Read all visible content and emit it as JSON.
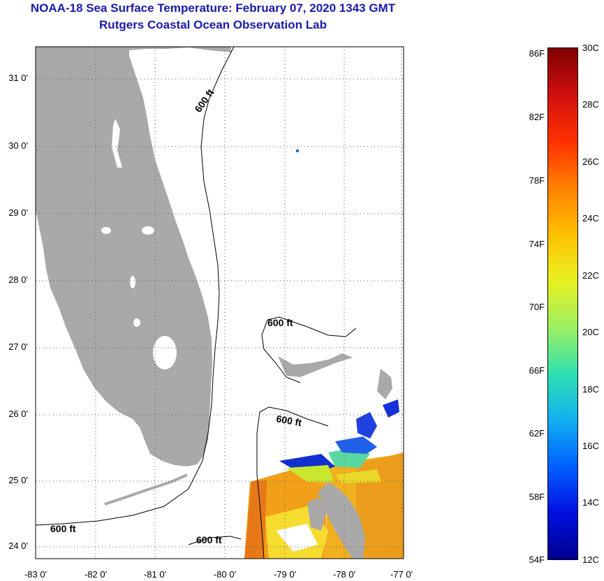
{
  "title": {
    "line1": "NOAA-18 Sea Surface Temperature:  February 07, 2020 1343 GMT",
    "line2": "Rutgers Coastal Ocean Observation Lab"
  },
  "map": {
    "lat_labels": [
      "31 0'",
      "30 0'",
      "29 0'",
      "28 0'",
      "27 0'",
      "26 0'",
      "25 0'",
      "24 0'"
    ],
    "lon_labels": [
      "-83 0'",
      "-82 0'",
      "-81 0'",
      "-80 0'",
      "-79 0'",
      "-78 0'",
      "-77 0'"
    ],
    "contour_labels": [
      "600 ft",
      "600 ft",
      "600 ft",
      "600 ft",
      "600 ft"
    ],
    "land_color": "#a9a9a9"
  },
  "colorbar": {
    "fahrenheit": [
      "86F",
      "82F",
      "78F",
      "74F",
      "70F",
      "66F",
      "62F",
      "58F",
      "54F"
    ],
    "celsius": [
      "30C",
      "28C",
      "26C",
      "24C",
      "22C",
      "20C",
      "18C",
      "16C",
      "14C",
      "12C"
    ],
    "gradient_colors": [
      "#7f0000",
      "#d01010",
      "#ff3000",
      "#ff8000",
      "#ffc000",
      "#e8f020",
      "#9df060",
      "#30e0b0",
      "#10b0f0",
      "#0060ff",
      "#0010e0",
      "#00008f"
    ]
  }
}
